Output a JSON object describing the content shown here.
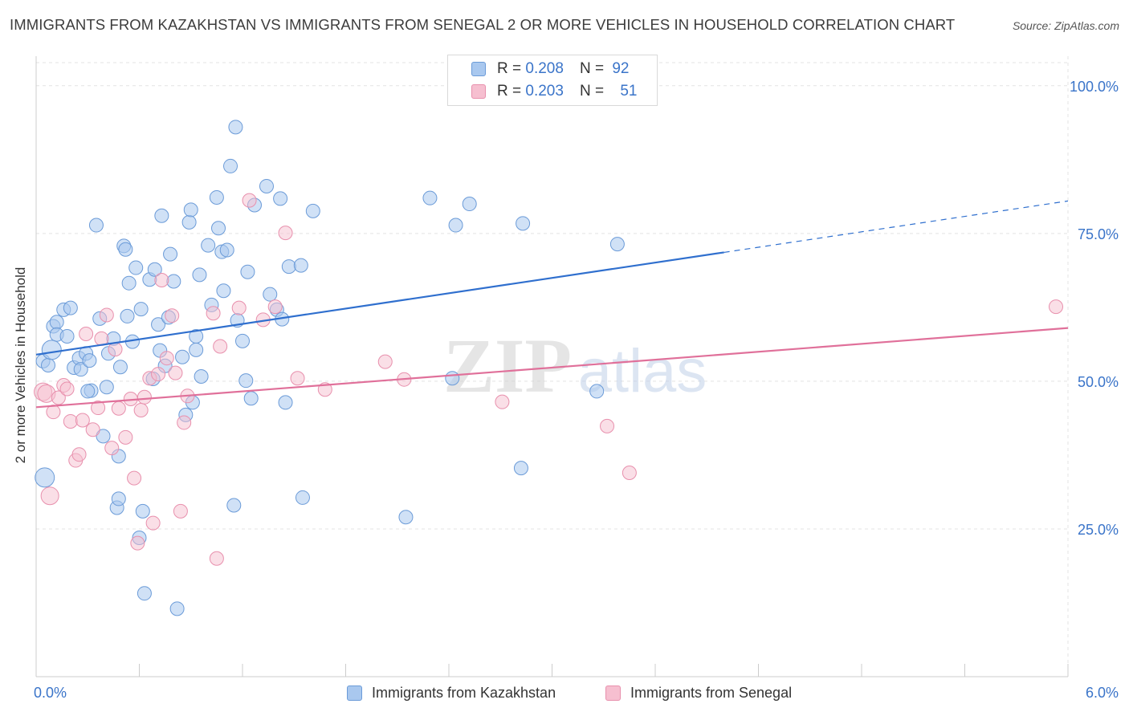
{
  "title": "IMMIGRANTS FROM KAZAKHSTAN VS IMMIGRANTS FROM SENEGAL 2 OR MORE VEHICLES IN HOUSEHOLD CORRELATION CHART",
  "source": "Source: ZipAtlas.com",
  "watermark": "ZIPatlas",
  "legend": {
    "rows": [
      {
        "r_label": "R =",
        "r_value": "0.208",
        "n_label": "N =",
        "n_value": "92"
      },
      {
        "r_label": "R =",
        "r_value": "0.203",
        "n_label": "N =",
        "n_value": "51"
      }
    ]
  },
  "colors": {
    "kazakhstan_fill": "#a9c8ef",
    "kazakhstan_stroke": "#6b9bd8",
    "kazakhstan_line": "#2f6fce",
    "senegal_fill": "#f6bfd0",
    "senegal_stroke": "#e890ad",
    "senegal_line": "#e0709a",
    "tick_label": "#3a74c9",
    "grid": "#e3e3e3"
  },
  "chart_data": {
    "type": "scatter",
    "xlabel": "",
    "ylabel": "2 or more Vehicles in Household",
    "xlim": [
      0,
      6
    ],
    "ylim": [
      0,
      105
    ],
    "x_tick_labels": [
      "0.0%",
      "6.0%"
    ],
    "x_tick_values": [
      0,
      6
    ],
    "y_ticks": [
      25,
      50,
      75,
      100
    ],
    "y_tick_labels": [
      "25.0%",
      "50.0%",
      "75.0%",
      "100.0%"
    ],
    "grid": true,
    "legend_position": "top-center",
    "series": [
      {
        "name": "Immigrants from Kazakhstan",
        "R": 0.208,
        "N": 92,
        "trend": {
          "x": [
            0,
            4.0,
            6.0
          ],
          "y": [
            54.5,
            71.8,
            80.5
          ],
          "solid_until": 4.0
        },
        "points": [
          [
            0.04,
            53.4
          ],
          [
            0.07,
            52.7
          ],
          [
            0.1,
            59.3
          ],
          [
            0.12,
            60.0
          ],
          [
            0.12,
            57.9
          ],
          [
            0.16,
            62.1
          ],
          [
            0.18,
            57.6
          ],
          [
            0.2,
            62.4
          ],
          [
            0.22,
            52.3
          ],
          [
            0.25,
            53.9
          ],
          [
            0.26,
            52.0
          ],
          [
            0.29,
            54.7
          ],
          [
            0.31,
            53.5
          ],
          [
            0.32,
            48.4
          ],
          [
            0.35,
            76.4
          ],
          [
            0.37,
            60.6
          ],
          [
            0.39,
            40.7
          ],
          [
            0.41,
            49.0
          ],
          [
            0.42,
            54.7
          ],
          [
            0.45,
            57.2
          ],
          [
            0.47,
            28.6
          ],
          [
            0.48,
            30.1
          ],
          [
            0.49,
            52.4
          ],
          [
            0.51,
            72.9
          ],
          [
            0.52,
            72.3
          ],
          [
            0.53,
            61.0
          ],
          [
            0.54,
            66.6
          ],
          [
            0.56,
            56.7
          ],
          [
            0.58,
            69.2
          ],
          [
            0.6,
            23.5
          ],
          [
            0.61,
            62.2
          ],
          [
            0.62,
            28.0
          ],
          [
            0.63,
            14.1
          ],
          [
            0.66,
            67.2
          ],
          [
            0.68,
            50.4
          ],
          [
            0.69,
            68.9
          ],
          [
            0.71,
            59.6
          ],
          [
            0.72,
            55.2
          ],
          [
            0.73,
            78.0
          ],
          [
            0.75,
            52.6
          ],
          [
            0.77,
            60.8
          ],
          [
            0.78,
            71.5
          ],
          [
            0.8,
            66.9
          ],
          [
            0.82,
            11.5
          ],
          [
            0.85,
            54.1
          ],
          [
            0.87,
            44.3
          ],
          [
            0.89,
            76.9
          ],
          [
            0.9,
            79.0
          ],
          [
            0.91,
            46.4
          ],
          [
            0.93,
            57.6
          ],
          [
            0.93,
            55.3
          ],
          [
            0.95,
            68.0
          ],
          [
            1.0,
            73.0
          ],
          [
            1.02,
            62.9
          ],
          [
            1.05,
            81.1
          ],
          [
            1.06,
            75.9
          ],
          [
            1.08,
            71.9
          ],
          [
            1.09,
            65.3
          ],
          [
            1.11,
            72.2
          ],
          [
            1.13,
            86.4
          ],
          [
            1.15,
            29.0
          ],
          [
            1.16,
            93.0
          ],
          [
            1.17,
            60.3
          ],
          [
            1.2,
            56.8
          ],
          [
            1.22,
            50.1
          ],
          [
            1.23,
            68.5
          ],
          [
            1.27,
            79.8
          ],
          [
            1.34,
            83.0
          ],
          [
            1.36,
            64.7
          ],
          [
            1.4,
            62.1
          ],
          [
            1.42,
            80.9
          ],
          [
            1.43,
            60.5
          ],
          [
            1.45,
            46.4
          ],
          [
            1.47,
            69.4
          ],
          [
            1.54,
            69.6
          ],
          [
            1.55,
            30.3
          ],
          [
            1.61,
            78.8
          ],
          [
            2.15,
            27.0
          ],
          [
            2.29,
            81.0
          ],
          [
            2.42,
            50.5
          ],
          [
            2.44,
            76.4
          ],
          [
            2.52,
            80.0
          ],
          [
            2.82,
            35.3
          ],
          [
            2.83,
            76.7
          ],
          [
            3.26,
            48.3
          ],
          [
            3.38,
            73.2
          ],
          [
            0.3,
            48.3
          ],
          [
            0.48,
            37.3
          ],
          [
            0.96,
            50.8
          ],
          [
            1.25,
            47.1
          ],
          [
            0.09,
            55.3
          ],
          [
            0.05,
            33.7
          ]
        ]
      },
      {
        "name": "Immigrants from Senegal",
        "R": 0.203,
        "N": 51,
        "trend": {
          "x": [
            0,
            6.0
          ],
          "y": [
            45.6,
            59.0
          ]
        },
        "points": [
          [
            0.04,
            48.2
          ],
          [
            0.06,
            47.9
          ],
          [
            0.08,
            30.6
          ],
          [
            0.1,
            44.8
          ],
          [
            0.13,
            47.2
          ],
          [
            0.16,
            49.3
          ],
          [
            0.18,
            48.7
          ],
          [
            0.2,
            43.2
          ],
          [
            0.23,
            36.6
          ],
          [
            0.25,
            37.6
          ],
          [
            0.27,
            43.4
          ],
          [
            0.29,
            58.0
          ],
          [
            0.33,
            41.8
          ],
          [
            0.36,
            45.5
          ],
          [
            0.38,
            57.2
          ],
          [
            0.41,
            61.2
          ],
          [
            0.44,
            38.7
          ],
          [
            0.46,
            55.4
          ],
          [
            0.48,
            45.4
          ],
          [
            0.52,
            40.5
          ],
          [
            0.55,
            47.0
          ],
          [
            0.57,
            33.6
          ],
          [
            0.59,
            22.6
          ],
          [
            0.61,
            45.1
          ],
          [
            0.63,
            47.3
          ],
          [
            0.66,
            50.5
          ],
          [
            0.68,
            26.0
          ],
          [
            0.71,
            51.2
          ],
          [
            0.73,
            67.1
          ],
          [
            0.76,
            53.9
          ],
          [
            0.79,
            61.1
          ],
          [
            0.81,
            51.4
          ],
          [
            0.84,
            28.0
          ],
          [
            0.86,
            43.0
          ],
          [
            0.88,
            47.5
          ],
          [
            1.03,
            61.5
          ],
          [
            1.05,
            20.0
          ],
          [
            1.07,
            55.9
          ],
          [
            1.18,
            62.4
          ],
          [
            1.24,
            80.6
          ],
          [
            1.32,
            60.4
          ],
          [
            1.39,
            62.6
          ],
          [
            1.45,
            75.1
          ],
          [
            1.52,
            50.5
          ],
          [
            1.68,
            48.6
          ],
          [
            2.03,
            53.3
          ],
          [
            2.14,
            50.3
          ],
          [
            2.71,
            46.5
          ],
          [
            3.32,
            42.4
          ],
          [
            3.45,
            34.5
          ],
          [
            5.93,
            62.6
          ]
        ]
      }
    ]
  },
  "bottom_legend": [
    "Immigrants from Kazakhstan",
    "Immigrants from Senegal"
  ]
}
